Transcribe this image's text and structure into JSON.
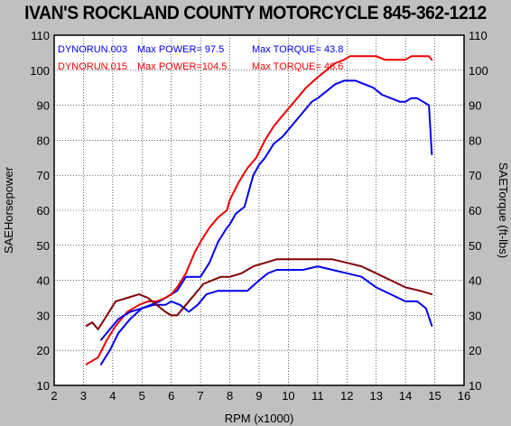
{
  "chart_data": {
    "type": "line",
    "title": "IVAN'S ROCKLAND COUNTY MOTORCYCLE 845-362-1212",
    "xlabel": "RPM (x1000)",
    "ylabel_left": "SAEHorsepower",
    "ylabel_right": "SAETorque (ft-lbs)",
    "xlim": [
      2,
      16
    ],
    "ylim": [
      10,
      110
    ],
    "x_ticks": [
      "2",
      "3",
      "4",
      "5",
      "6",
      "7",
      "8",
      "9",
      "10",
      "11",
      "12",
      "13",
      "14",
      "15",
      "16"
    ],
    "y_ticks": [
      "10",
      "20",
      "30",
      "40",
      "50",
      "60",
      "70",
      "80",
      "90",
      "100",
      "110"
    ],
    "grid": true,
    "legend": [
      {
        "run": "DYNORUN.003",
        "power": "Max POWER= 97.5",
        "torque": "Max TORQUE= 43.8",
        "color": "#0000ee"
      },
      {
        "run": "DYNORUN.015",
        "power": "Max POWER=104.5",
        "torque": "Max TORQUE= 46.6",
        "color": "#ee0000"
      }
    ],
    "series": [
      {
        "run": "DYNORUN.003",
        "measure": "power",
        "color": "#0000ee",
        "x": [
          3.6,
          3.9,
          4.2,
          4.6,
          5.0,
          5.3,
          5.6,
          5.8,
          6.0,
          6.2,
          6.5,
          6.8,
          7.0,
          7.3,
          7.6,
          7.9,
          8.0,
          8.2,
          8.5,
          8.8,
          9.0,
          9.2,
          9.5,
          9.8,
          10.0,
          10.2,
          10.5,
          10.8,
          11.0,
          11.3,
          11.6,
          11.9,
          12.1,
          12.3,
          12.6,
          12.9,
          13.2,
          13.5,
          13.8,
          14.0,
          14.2,
          14.4,
          14.6,
          14.8,
          14.9
        ],
        "y": [
          16,
          20,
          25,
          29,
          32,
          33,
          34,
          35,
          36,
          37,
          41,
          41,
          41,
          45,
          51,
          55,
          56,
          59,
          61,
          70,
          73,
          75,
          79,
          81,
          83,
          85,
          88,
          91,
          92,
          94,
          96,
          97,
          97,
          97,
          96,
          95,
          93,
          92,
          91,
          91,
          92,
          92,
          91,
          90,
          76
        ]
      },
      {
        "run": "DYNORUN.015",
        "measure": "power",
        "color": "#ee0000",
        "x": [
          3.1,
          3.3,
          3.5,
          3.8,
          4.1,
          4.5,
          4.9,
          5.2,
          5.5,
          5.8,
          6.0,
          6.2,
          6.5,
          6.8,
          7.0,
          7.3,
          7.6,
          7.9,
          8.0,
          8.3,
          8.6,
          8.9,
          9.2,
          9.5,
          9.8,
          10.0,
          10.3,
          10.6,
          11.0,
          11.3,
          11.6,
          11.9,
          12.1,
          12.4,
          12.7,
          13.0,
          13.3,
          13.6,
          14.0,
          14.2,
          14.4,
          14.6,
          14.8,
          14.9
        ],
        "y": [
          16,
          17,
          18,
          23,
          27,
          31,
          33,
          34,
          34,
          35,
          36,
          38,
          42,
          48,
          51,
          55,
          58,
          60,
          63,
          68,
          72,
          75,
          80,
          84,
          87,
          89,
          92,
          95,
          98,
          100,
          102,
          103,
          104,
          104,
          104,
          104,
          103,
          103,
          103,
          104,
          104,
          104,
          104,
          103
        ]
      },
      {
        "run": "DYNORUN.003",
        "measure": "torque",
        "color": "#0000ee",
        "x": [
          3.6,
          3.9,
          4.2,
          4.6,
          5.0,
          5.4,
          5.8,
          6.0,
          6.3,
          6.6,
          6.9,
          7.2,
          7.6,
          8.0,
          8.3,
          8.6,
          9.0,
          9.3,
          9.6,
          10.0,
          10.5,
          11.0,
          11.5,
          12.0,
          12.5,
          13.0,
          13.5,
          14.0,
          14.4,
          14.7,
          14.9
        ],
        "y": [
          23,
          26,
          29,
          31,
          32,
          33,
          33,
          34,
          33,
          31,
          33,
          36,
          37,
          37,
          37,
          37,
          40,
          42,
          43,
          43,
          43,
          44,
          43,
          42,
          41,
          38,
          36,
          34,
          34,
          32,
          27
        ]
      },
      {
        "run": "DYNORUN.015",
        "measure": "torque",
        "color": "#800000",
        "x": [
          3.1,
          3.3,
          3.5,
          3.8,
          4.1,
          4.5,
          4.9,
          5.2,
          5.5,
          5.8,
          6.0,
          6.2,
          6.5,
          6.8,
          7.1,
          7.4,
          7.7,
          8.0,
          8.4,
          8.8,
          9.2,
          9.6,
          10.0,
          10.5,
          11.0,
          11.5,
          12.0,
          12.5,
          13.0,
          13.5,
          14.0,
          14.5,
          14.9
        ],
        "y": [
          27,
          28,
          26,
          30,
          34,
          35,
          36,
          35,
          33,
          31,
          30,
          30,
          33,
          36,
          39,
          40,
          41,
          41,
          42,
          44,
          45,
          46,
          46,
          46,
          46,
          46,
          45,
          44,
          42,
          40,
          38,
          37,
          36
        ]
      }
    ]
  }
}
